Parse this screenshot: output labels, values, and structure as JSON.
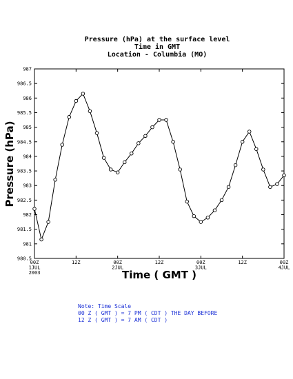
{
  "chart_data": {
    "type": "line",
    "title": [
      "Pressure (hPa) at the surface level",
      "Time in GMT",
      "Location - Columbia (MO)"
    ],
    "xlabel": "Time ( GMT )",
    "ylabel": "Pressure (hPa)",
    "xlim": [
      0,
      72
    ],
    "ylim": [
      980.5,
      987
    ],
    "grid": false,
    "y_ticks": [
      980.5,
      981,
      981.5,
      982,
      982.5,
      983,
      983.5,
      984,
      984.5,
      985,
      985.5,
      986,
      986.5,
      987
    ],
    "y_tick_labels": [
      "980.5",
      "981",
      "981.5",
      "982",
      "982.5",
      "983",
      "983.5",
      "984",
      "984.5",
      "985",
      "985.5",
      "986",
      "986.5",
      "987"
    ],
    "x_ticks": [
      {
        "x": 0,
        "lines": [
          "00Z",
          "1JUL",
          "2003"
        ]
      },
      {
        "x": 12,
        "lines": [
          "12Z"
        ]
      },
      {
        "x": 24,
        "lines": [
          "00Z",
          "2JUL"
        ]
      },
      {
        "x": 36,
        "lines": [
          "12Z"
        ]
      },
      {
        "x": 48,
        "lines": [
          "00Z",
          "3JUL"
        ]
      },
      {
        "x": 60,
        "lines": [
          "12Z"
        ]
      },
      {
        "x": 72,
        "lines": [
          "00Z",
          "4JUL"
        ]
      }
    ],
    "series": [
      {
        "x": [
          0,
          2,
          4,
          6,
          8,
          10,
          12,
          14,
          16,
          18,
          20,
          22,
          24,
          26,
          28,
          30,
          32,
          34,
          36,
          38,
          40,
          42,
          44,
          46,
          48,
          50,
          52,
          54,
          56,
          58,
          60,
          62,
          64,
          66,
          68,
          70,
          72
        ],
        "values": [
          982.2,
          981.15,
          981.75,
          983.2,
          984.4,
          985.35,
          985.9,
          986.15,
          985.55,
          984.8,
          983.95,
          983.55,
          983.45,
          983.8,
          984.1,
          984.45,
          984.7,
          985.0,
          985.25,
          985.25,
          984.5,
          983.55,
          982.45,
          981.95,
          981.75,
          981.9,
          982.15,
          982.5,
          982.95,
          983.7,
          984.5,
          984.85,
          984.25,
          983.55,
          982.95,
          983.05,
          983.35
        ]
      }
    ]
  },
  "note": {
    "lines": [
      "Note: Time Scale",
      "00 Z ( GMT ) = 7 PM ( CDT ) THE DAY BEFORE",
      "12 Z ( GMT ) = 7 AM ( CDT )"
    ],
    "color": "#1a2fd6"
  }
}
